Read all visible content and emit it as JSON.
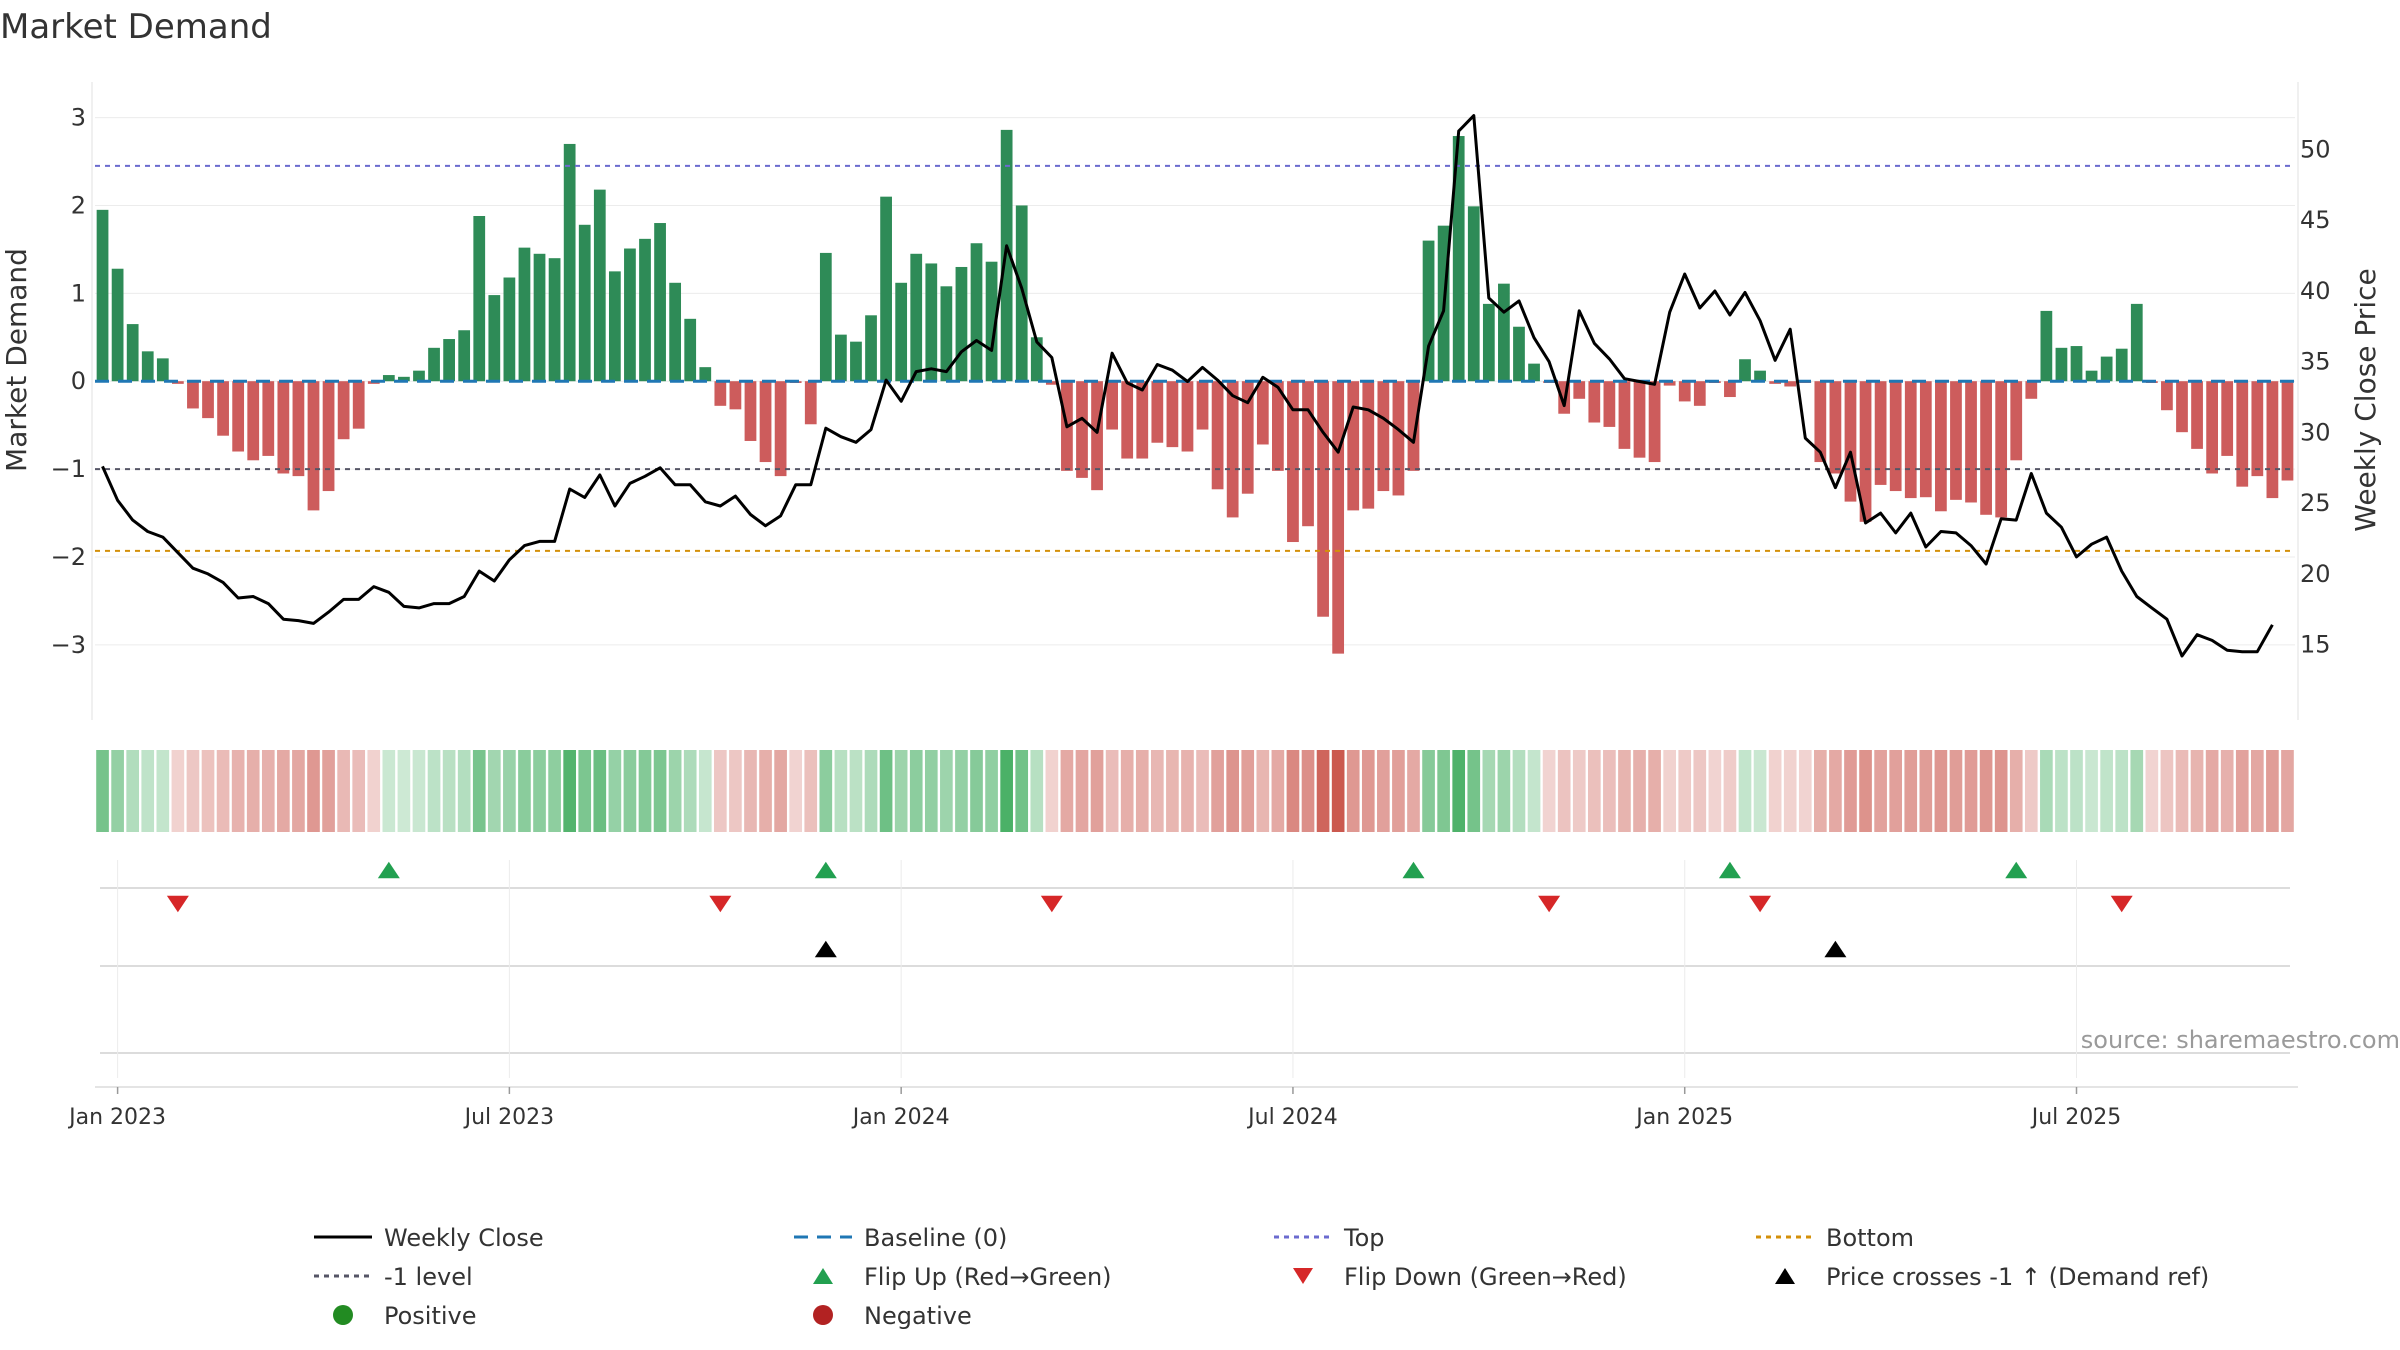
{
  "chart_data": {
    "type": "bar",
    "title": "Market Demand",
    "ylabel_left": "Market Demand",
    "ylabel_right": "Weekly Close Price",
    "source": "source: sharemaestro.com",
    "ylim_left": [
      -3.4,
      3.2
    ],
    "ylim_right": [
      12.5,
      53.5
    ],
    "yticks_left": [
      3,
      2,
      1,
      0,
      -1,
      -2,
      -3
    ],
    "yticks_left_labels": [
      "3",
      "2",
      "1",
      "0",
      "−1",
      "−2",
      "−3"
    ],
    "yticks_right": [
      50,
      45,
      40,
      35,
      30,
      25,
      20,
      15
    ],
    "yticks_right_labels": [
      "50",
      "45",
      "40",
      "35",
      "30",
      "25",
      "20",
      "15"
    ],
    "x_start": "2022-12-26",
    "x_end": "2025-09-22",
    "x_ticks": [
      {
        "week": 1.5,
        "label": "Jan 2023"
      },
      {
        "week": 27.5,
        "label": "Jul 2023"
      },
      {
        "week": 53.5,
        "label": "Jan 2024"
      },
      {
        "week": 79.5,
        "label": "Jul 2024"
      },
      {
        "week": 105.5,
        "label": "Jan 2025"
      },
      {
        "week": 131.5,
        "label": "Jul 2025"
      }
    ],
    "reference_lines": {
      "top": 2.45,
      "minus_one": -1.0,
      "bottom": -1.93,
      "baseline": 0
    },
    "demand": [
      1.95,
      1.28,
      0.65,
      0.34,
      0.26,
      -0.03,
      -0.31,
      -0.42,
      -0.62,
      -0.8,
      -0.9,
      -0.85,
      -1.05,
      -1.08,
      -1.47,
      -1.25,
      -0.66,
      -0.54,
      -0.03,
      0.07,
      0.05,
      0.12,
      0.38,
      0.48,
      0.58,
      1.88,
      0.98,
      1.18,
      1.52,
      1.45,
      1.4,
      2.7,
      1.78,
      2.18,
      1.25,
      1.51,
      1.62,
      1.8,
      1.12,
      0.71,
      0.16,
      -0.28,
      -0.32,
      -0.68,
      -0.92,
      -1.08,
      -0.02,
      -0.49,
      1.46,
      0.53,
      0.45,
      0.75,
      2.1,
      1.12,
      1.45,
      1.34,
      1.08,
      1.3,
      1.57,
      1.36,
      2.86,
      2.0,
      0.5,
      -0.04,
      -1.02,
      -1.1,
      -1.24,
      -0.55,
      -0.88,
      -0.88,
      -0.7,
      -0.75,
      -0.8,
      -0.55,
      -1.23,
      -1.55,
      -1.28,
      -0.72,
      -1.02,
      -1.83,
      -1.65,
      -2.68,
      -3.1,
      -1.47,
      -1.45,
      -1.25,
      -1.3,
      -1.02,
      1.6,
      1.77,
      2.79,
      1.99,
      0.88,
      1.11,
      0.62,
      0.2,
      -0.02,
      -0.37,
      -0.2,
      -0.47,
      -0.52,
      -0.77,
      -0.87,
      -0.92,
      -0.05,
      -0.23,
      -0.28,
      -0.02,
      -0.18,
      0.25,
      0.12,
      -0.03,
      -0.06,
      -0.02,
      -0.92,
      -1.05,
      -1.37,
      -1.6,
      -1.18,
      -1.25,
      -1.33,
      -1.32,
      -1.48,
      -1.35,
      -1.38,
      -1.52,
      -1.55,
      -0.9,
      -0.2,
      0.8,
      0.38,
      0.4,
      0.12,
      0.28,
      0.37,
      0.88,
      -0.02,
      -0.33,
      -0.58,
      -0.77,
      -1.05,
      -0.85,
      -1.2,
      -1.08,
      -1.33,
      -1.13
    ],
    "price": [
      27.6,
      25.2,
      23.8,
      23.0,
      22.6,
      21.5,
      20.4,
      20.0,
      19.4,
      18.3,
      18.4,
      17.9,
      16.8,
      16.7,
      16.5,
      17.3,
      18.2,
      18.2,
      19.1,
      18.7,
      17.7,
      17.6,
      17.9,
      17.9,
      18.4,
      20.2,
      19.5,
      21.0,
      22.0,
      22.3,
      22.3,
      26.0,
      25.4,
      27.0,
      24.8,
      26.4,
      26.9,
      27.5,
      26.3,
      26.3,
      25.1,
      24.8,
      25.5,
      24.2,
      23.4,
      24.1,
      26.3,
      26.3,
      30.3,
      29.7,
      29.3,
      30.2,
      33.7,
      32.2,
      34.3,
      34.5,
      34.3,
      35.7,
      36.5,
      35.8,
      43.2,
      40.2,
      36.4,
      35.3,
      30.4,
      31.0,
      30.0,
      35.6,
      33.5,
      33.0,
      34.8,
      34.4,
      33.6,
      34.6,
      33.7,
      32.6,
      32.1,
      33.9,
      33.2,
      31.6,
      31.6,
      30.0,
      28.6,
      31.8,
      31.6,
      31.0,
      30.2,
      29.3,
      36.1,
      38.6,
      51.3,
      52.4,
      39.5,
      38.5,
      39.3,
      36.7,
      35.0,
      31.9,
      38.6,
      36.3,
      35.2,
      33.8,
      33.6,
      33.4,
      38.5,
      41.2,
      38.8,
      40.0,
      38.3,
      39.9,
      37.9,
      35.1,
      37.3,
      29.6,
      28.6,
      26.1,
      28.6,
      23.6,
      24.3,
      22.9,
      24.3,
      21.9,
      23.0,
      22.9,
      22.0,
      20.7,
      23.9,
      23.8,
      27.1,
      24.3,
      23.3,
      21.2,
      22.1,
      22.6,
      20.2,
      18.4,
      17.6,
      16.8,
      14.2,
      15.7,
      15.3,
      14.6,
      14.5,
      14.5,
      16.4
    ],
    "flip_up_weeks": [
      19,
      48,
      87,
      108,
      127
    ],
    "flip_down_weeks": [
      5,
      41,
      63,
      96,
      110,
      134
    ],
    "price_cross_weeks": [
      48,
      115
    ],
    "legend": [
      {
        "key": "weekly_close",
        "label": "Weekly Close",
        "color": "#000000"
      },
      {
        "key": "baseline",
        "label": "Baseline (0)",
        "color": "#1f77b4"
      },
      {
        "key": "top",
        "label": "Top",
        "color": "#6b6bcf"
      },
      {
        "key": "bottom",
        "label": "Bottom",
        "color": "#d4900a"
      },
      {
        "key": "minus_one",
        "label": "-1 level",
        "color": "#555566"
      },
      {
        "key": "flip_up",
        "label": "Flip Up (Red→Green)",
        "color": "#22a050"
      },
      {
        "key": "flip_down",
        "label": "Flip Down (Green→Red)",
        "color": "#d62728"
      },
      {
        "key": "price_cross",
        "label": "Price crosses -1 ↑ (Demand ref)",
        "color": "#000000"
      },
      {
        "key": "positive",
        "label": "Positive",
        "color": "#228b22"
      },
      {
        "key": "negative",
        "label": "Negative",
        "color": "#b22222"
      }
    ],
    "colors": {
      "positive_bar": "#2e8b57",
      "negative_bar": "#cd5c5c"
    }
  }
}
